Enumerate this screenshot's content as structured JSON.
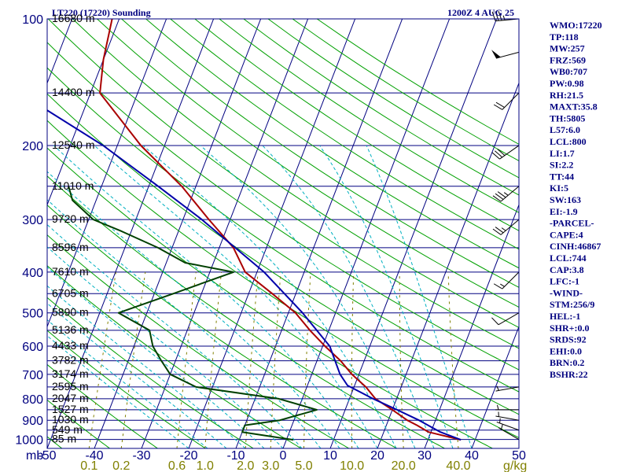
{
  "header": {
    "station": "LT220 (17220) Sounding",
    "time": "1200Z  4 AUG 25"
  },
  "axes": {
    "pressure_unit": "mb",
    "mixing_ratio_unit": "g/kg"
  },
  "indices": [
    "WMO:17220",
    "TP:118",
    "MW:257",
    "FRZ:569",
    "WB0:707",
    "PW:0.98",
    "RH:21.5",
    "MAXT:35.8",
    "TH:5805",
    "L57:6.0",
    "LCL:800",
    "LI:1.7",
    "SI:2.2",
    "TT:44",
    "KI:5",
    "SW:163",
    "EI:-1.9",
    "-PARCEL-",
    "CAPE:4",
    "CINH:46867",
    "LCL:744",
    "CAP:3.8",
    "LFC:-1",
    "-WIND-",
    "STM:256/9",
    "HEL:-1",
    "SHR+:0.0",
    "SRDS:92",
    "EHI:0.0",
    "BRN:0.2",
    "BSHR:22"
  ],
  "chart_data": {
    "type": "line",
    "title": "LT220 (17220) Sounding",
    "subtitle": "1200Z  4 AUG 25",
    "diagram": "skew-T log-P",
    "pressure_levels_mb": [
      100,
      200,
      300,
      400,
      500,
      600,
      700,
      800,
      900,
      1000
    ],
    "pressure_range_mb": [
      1050,
      100
    ],
    "temperature_ticks_c": [
      -50,
      -40,
      -30,
      -20,
      -10,
      0,
      10,
      20,
      30,
      40,
      50
    ],
    "temperature_tick_labels": [
      "-50",
      "-40",
      "-30",
      "-20",
      "-10",
      "0",
      "10",
      "20",
      "30",
      "40",
      "50"
    ],
    "mixing_ratio_ticks": [
      "0.1",
      "0.2",
      "0.6",
      "1.0",
      "2.0",
      "3.0",
      "5.0",
      "10.0",
      "20.0",
      "40.0"
    ],
    "mixing_ratio_values": [
      0.1,
      0.2,
      0.6,
      1.0,
      2.0,
      3.0,
      5.0,
      10.0,
      20.0,
      40.0
    ],
    "height_labels": [
      {
        "p": 100,
        "text": "16680 m"
      },
      {
        "p": 150,
        "text": "14400 m"
      },
      {
        "p": 200,
        "text": "12540 m"
      },
      {
        "p": 250,
        "text": "11010 m"
      },
      {
        "p": 300,
        "text": "9720 m"
      },
      {
        "p": 350,
        "text": "8596 m"
      },
      {
        "p": 400,
        "text": "7610 m"
      },
      {
        "p": 450,
        "text": "6705 m"
      },
      {
        "p": 500,
        "text": "5890 m"
      },
      {
        "p": 550,
        "text": "5136 m"
      },
      {
        "p": 600,
        "text": "4433 m"
      },
      {
        "p": 650,
        "text": "3782 m"
      },
      {
        "p": 700,
        "text": "3174 m"
      },
      {
        "p": 750,
        "text": "2595 m"
      },
      {
        "p": 800,
        "text": "2047 m"
      },
      {
        "p": 850,
        "text": "1527 m"
      },
      {
        "p": 900,
        "text": "1030 m"
      },
      {
        "p": 950,
        "text": "549 m"
      },
      {
        "p": 1000,
        "text": "85 m"
      }
    ],
    "series": [
      {
        "key": "temperature",
        "color": "#aa0000",
        "points": [
          [
            1002,
            37
          ],
          [
            960,
            29.5
          ],
          [
            925,
            26.5
          ],
          [
            900,
            24
          ],
          [
            850,
            20
          ],
          [
            800,
            15.5
          ],
          [
            750,
            12.5
          ],
          [
            700,
            8.5
          ],
          [
            650,
            5
          ],
          [
            600,
            0.5
          ],
          [
            550,
            -4
          ],
          [
            500,
            -8.5
          ],
          [
            450,
            -15
          ],
          [
            400,
            -22.5
          ],
          [
            350,
            -27
          ],
          [
            300,
            -34.5
          ],
          [
            250,
            -43
          ],
          [
            200,
            -55
          ],
          [
            150,
            -68
          ],
          [
            125,
            -70
          ],
          [
            100,
            -71.5
          ]
        ]
      },
      {
        "key": "dewpoint",
        "color": "#004000",
        "points": [
          [
            1002,
            1.5
          ],
          [
            960,
            -10
          ],
          [
            925,
            -10
          ],
          [
            900,
            -3
          ],
          [
            850,
            4
          ],
          [
            800,
            -5
          ],
          [
            750,
            -23.5
          ],
          [
            700,
            -30
          ],
          [
            650,
            -33
          ],
          [
            600,
            -36
          ],
          [
            550,
            -38
          ],
          [
            500,
            -46
          ],
          [
            450,
            -36
          ],
          [
            400,
            -25
          ],
          [
            380,
            -36
          ],
          [
            350,
            -43
          ],
          [
            320,
            -52
          ],
          [
            300,
            -59
          ],
          [
            270,
            -65
          ],
          [
            250,
            -67
          ]
        ]
      },
      {
        "key": "parcel",
        "color": "#0000aa",
        "points": [
          [
            1002,
            37
          ],
          [
            960,
            32
          ],
          [
            900,
            26.5
          ],
          [
            850,
            21
          ],
          [
            800,
            15
          ],
          [
            744,
            8.5
          ],
          [
            700,
            6
          ],
          [
            600,
            1.5
          ],
          [
            500,
            -7
          ],
          [
            400,
            -18.5
          ],
          [
            300,
            -36
          ],
          [
            250,
            -48
          ],
          [
            200,
            -63
          ],
          [
            150,
            -85
          ],
          [
            100,
            -110
          ]
        ]
      }
    ],
    "wind_barbs": [
      {
        "p": 1000,
        "dir": 300,
        "kt": 5
      },
      {
        "p": 950,
        "dir": 290,
        "kt": 5
      },
      {
        "p": 900,
        "dir": 280,
        "kt": 5
      },
      {
        "p": 850,
        "dir": 270,
        "kt": 5
      },
      {
        "p": 750,
        "dir": 260,
        "kt": 5
      },
      {
        "p": 500,
        "dir": 240,
        "kt": 10
      },
      {
        "p": 400,
        "dir": 225,
        "kt": 15
      },
      {
        "p": 300,
        "dir": 230,
        "kt": 25
      },
      {
        "p": 250,
        "dir": 230,
        "kt": 35
      },
      {
        "p": 200,
        "dir": 235,
        "kt": 30
      },
      {
        "p": 150,
        "dir": 225,
        "kt": 20
      },
      {
        "p": 120,
        "dir": 255,
        "kt": 50
      },
      {
        "p": 100,
        "dir": 265,
        "kt": 35
      }
    ],
    "colors": {
      "isobar": "#000080",
      "isotherm": "#000080",
      "dry_adiabat": "#00a000",
      "moist_adiabat": "#00b0c0",
      "mixing_ratio": "#808000",
      "wind_barb": "#000000",
      "index_text": "#000080",
      "axis_label": "#000080",
      "mixing_ratio_label": "#808000",
      "border": "#000080"
    }
  }
}
